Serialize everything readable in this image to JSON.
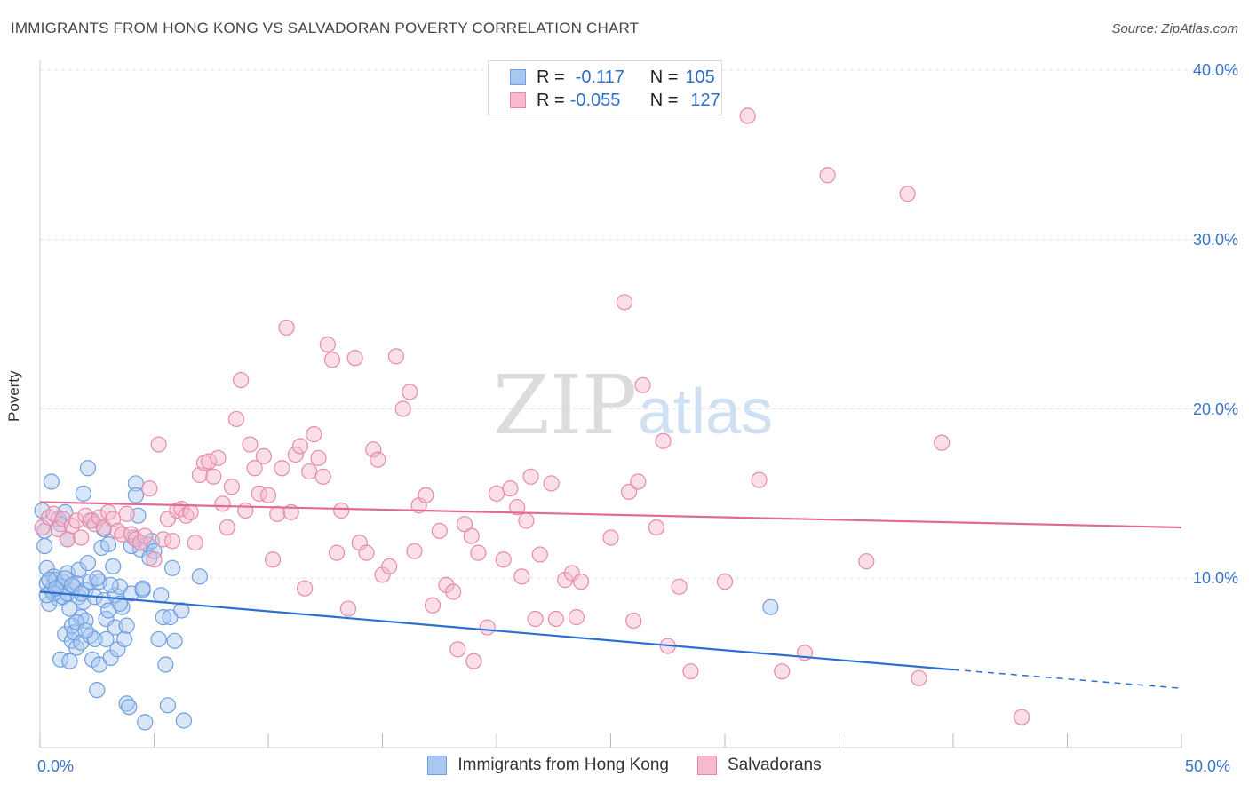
{
  "title": "IMMIGRANTS FROM HONG KONG VS SALVADORAN POVERTY CORRELATION CHART",
  "source": "Source: ZipAtlas.com",
  "watermark": {
    "zip": "ZIP",
    "atlas": "atlas"
  },
  "legend": {
    "rows": [
      {
        "r_label": "R =",
        "r_value": "-0.117",
        "n_label": "N =",
        "n_value": "105",
        "color": "#a9c7f0",
        "border": "#6f9fe0"
      },
      {
        "r_label": "R =",
        "r_value": "-0.055",
        "n_label": "N =",
        "n_value": "127",
        "color": "#f7b9cc",
        "border": "#e88aa8"
      }
    ]
  },
  "bottom_legend": [
    {
      "label": "Immigrants from Hong Kong",
      "color": "#a9c7f0",
      "border": "#6f9fe0"
    },
    {
      "label": "Salvadorans",
      "color": "#f7b9cc",
      "border": "#e88aa8"
    }
  ],
  "chart_data": {
    "type": "scatter",
    "title": "IMMIGRANTS FROM HONG KONG VS SALVADORAN POVERTY CORRELATION CHART",
    "xlabel": "",
    "ylabel": "Poverty",
    "xlim": [
      0,
      50
    ],
    "ylim": [
      0,
      40
    ],
    "x_tick_labels": [
      "0.0%",
      "50.0%"
    ],
    "y_ticks": [
      10,
      20,
      30,
      40
    ],
    "y_tick_labels": [
      "10.0%",
      "20.0%",
      "30.0%",
      "40.0%"
    ],
    "grid": true,
    "legend_position": "top-center",
    "series": [
      {
        "name": "Immigrants from Hong Kong",
        "color": "#6f9fe0",
        "fill": "#a9c7f0",
        "line_color": "#2d6fd0",
        "trend": {
          "x0": 0,
          "y0": 9.2,
          "x1": 40,
          "y1": 4.6,
          "dash_to_x": 50,
          "dash_to_y": 3.5
        },
        "points": [
          [
            0.1,
            14.0
          ],
          [
            0.2,
            12.8
          ],
          [
            0.2,
            11.9
          ],
          [
            0.3,
            10.6
          ],
          [
            0.3,
            9.7
          ],
          [
            0.4,
            8.5
          ],
          [
            0.5,
            15.7
          ],
          [
            0.5,
            9.3
          ],
          [
            0.6,
            10.1
          ],
          [
            0.7,
            9.9
          ],
          [
            0.8,
            8.8
          ],
          [
            0.8,
            13.5
          ],
          [
            0.9,
            9.5
          ],
          [
            0.9,
            5.2
          ],
          [
            1.0,
            9.8
          ],
          [
            1.0,
            8.9
          ],
          [
            1.1,
            6.7
          ],
          [
            1.1,
            13.9
          ],
          [
            1.2,
            10.3
          ],
          [
            1.2,
            9.1
          ],
          [
            1.3,
            8.2
          ],
          [
            1.3,
            5.1
          ],
          [
            1.4,
            7.2
          ],
          [
            1.4,
            6.3
          ],
          [
            1.5,
            9.5
          ],
          [
            1.5,
            6.8
          ],
          [
            1.6,
            9.7
          ],
          [
            1.6,
            5.9
          ],
          [
            1.7,
            10.5
          ],
          [
            1.7,
            8.9
          ],
          [
            1.8,
            7.7
          ],
          [
            1.8,
            6.2
          ],
          [
            1.9,
            15.0
          ],
          [
            1.9,
            8.6
          ],
          [
            2.0,
            9.3
          ],
          [
            2.0,
            7.5
          ],
          [
            2.1,
            16.5
          ],
          [
            2.1,
            10.9
          ],
          [
            2.2,
            9.8
          ],
          [
            2.2,
            6.6
          ],
          [
            2.3,
            5.2
          ],
          [
            2.3,
            13.4
          ],
          [
            2.4,
            8.9
          ],
          [
            2.4,
            6.4
          ],
          [
            2.5,
            3.4
          ],
          [
            2.6,
            9.8
          ],
          [
            2.6,
            4.9
          ],
          [
            2.7,
            11.8
          ],
          [
            2.8,
            8.7
          ],
          [
            2.9,
            7.6
          ],
          [
            2.9,
            6.4
          ],
          [
            3.0,
            12.0
          ],
          [
            3.0,
            8.1
          ],
          [
            3.1,
            5.3
          ],
          [
            3.2,
            10.7
          ],
          [
            3.3,
            9.0
          ],
          [
            3.3,
            7.1
          ],
          [
            3.4,
            5.8
          ],
          [
            3.5,
            9.5
          ],
          [
            3.6,
            8.3
          ],
          [
            3.7,
            6.4
          ],
          [
            3.8,
            2.6
          ],
          [
            3.8,
            7.2
          ],
          [
            3.9,
            2.4
          ],
          [
            4.0,
            9.1
          ],
          [
            4.1,
            12.4
          ],
          [
            4.2,
            15.6
          ],
          [
            4.2,
            14.9
          ],
          [
            4.3,
            13.7
          ],
          [
            4.4,
            11.7
          ],
          [
            4.5,
            9.3
          ],
          [
            4.6,
            1.5
          ],
          [
            4.7,
            12.0
          ],
          [
            4.8,
            11.2
          ],
          [
            4.9,
            12.2
          ],
          [
            5.0,
            11.6
          ],
          [
            5.2,
            6.4
          ],
          [
            5.3,
            9.0
          ],
          [
            5.4,
            7.7
          ],
          [
            5.5,
            4.9
          ],
          [
            5.6,
            2.5
          ],
          [
            5.7,
            7.7
          ],
          [
            5.8,
            10.6
          ],
          [
            5.9,
            6.3
          ],
          [
            6.2,
            8.1
          ],
          [
            6.3,
            1.6
          ],
          [
            7.0,
            10.1
          ],
          [
            0.4,
            9.9
          ],
          [
            0.6,
            9.1
          ],
          [
            0.9,
            13.2
          ],
          [
            1.2,
            12.3
          ],
          [
            1.6,
            7.4
          ],
          [
            2.0,
            6.9
          ],
          [
            2.5,
            10.0
          ],
          [
            2.8,
            12.9
          ],
          [
            3.1,
            9.6
          ],
          [
            3.5,
            8.5
          ],
          [
            4.0,
            11.9
          ],
          [
            4.5,
            9.4
          ],
          [
            0.3,
            9.0
          ],
          [
            0.7,
            9.4
          ],
          [
            1.1,
            10.0
          ],
          [
            1.4,
            9.6
          ],
          [
            32.0,
            8.3
          ],
          [
            1.8,
            9.1
          ]
        ]
      },
      {
        "name": "Salvadorans",
        "color": "#e88aa8",
        "fill": "#f7b9cc",
        "line_color": "#e06b94",
        "trend": {
          "x0": 0,
          "y0": 14.5,
          "x1": 50,
          "y1": 13.0
        },
        "points": [
          [
            0.1,
            13.0
          ],
          [
            0.4,
            13.6
          ],
          [
            0.6,
            13.8
          ],
          [
            0.8,
            12.9
          ],
          [
            1.0,
            13.5
          ],
          [
            1.2,
            12.3
          ],
          [
            1.4,
            13.1
          ],
          [
            1.6,
            13.4
          ],
          [
            1.8,
            12.4
          ],
          [
            2.0,
            13.7
          ],
          [
            2.2,
            13.4
          ],
          [
            2.4,
            13.2
          ],
          [
            2.6,
            13.6
          ],
          [
            2.8,
            13.0
          ],
          [
            3.0,
            13.9
          ],
          [
            3.2,
            13.5
          ],
          [
            3.4,
            12.8
          ],
          [
            3.6,
            12.6
          ],
          [
            3.8,
            13.8
          ],
          [
            4.0,
            12.6
          ],
          [
            4.2,
            12.3
          ],
          [
            4.4,
            12.1
          ],
          [
            4.6,
            12.5
          ],
          [
            4.8,
            15.3
          ],
          [
            5.0,
            11.1
          ],
          [
            5.2,
            17.9
          ],
          [
            5.4,
            12.3
          ],
          [
            5.6,
            13.5
          ],
          [
            5.8,
            12.2
          ],
          [
            6.0,
            14.0
          ],
          [
            6.2,
            14.1
          ],
          [
            6.4,
            13.7
          ],
          [
            6.6,
            13.9
          ],
          [
            6.8,
            12.1
          ],
          [
            7.0,
            16.1
          ],
          [
            7.2,
            16.8
          ],
          [
            7.4,
            16.9
          ],
          [
            7.6,
            16.0
          ],
          [
            7.8,
            17.1
          ],
          [
            8.0,
            14.4
          ],
          [
            8.2,
            13.0
          ],
          [
            8.4,
            15.4
          ],
          [
            8.6,
            19.4
          ],
          [
            8.8,
            21.7
          ],
          [
            9.0,
            14.0
          ],
          [
            9.2,
            17.9
          ],
          [
            9.4,
            16.5
          ],
          [
            9.6,
            15.0
          ],
          [
            9.8,
            17.2
          ],
          [
            10.0,
            14.9
          ],
          [
            10.2,
            11.1
          ],
          [
            10.4,
            13.8
          ],
          [
            10.6,
            16.5
          ],
          [
            10.8,
            24.8
          ],
          [
            11.0,
            13.9
          ],
          [
            11.2,
            17.3
          ],
          [
            11.4,
            17.8
          ],
          [
            11.6,
            9.4
          ],
          [
            11.8,
            16.3
          ],
          [
            12.0,
            18.5
          ],
          [
            12.2,
            17.1
          ],
          [
            12.4,
            16.0
          ],
          [
            12.6,
            23.8
          ],
          [
            12.8,
            22.9
          ],
          [
            13.0,
            11.5
          ],
          [
            13.2,
            14.0
          ],
          [
            13.5,
            8.2
          ],
          [
            13.8,
            23.0
          ],
          [
            14.0,
            12.1
          ],
          [
            14.3,
            11.5
          ],
          [
            14.6,
            17.6
          ],
          [
            14.8,
            17.0
          ],
          [
            15.0,
            10.2
          ],
          [
            15.3,
            10.7
          ],
          [
            15.6,
            23.1
          ],
          [
            15.9,
            20.0
          ],
          [
            16.2,
            21.0
          ],
          [
            16.4,
            11.6
          ],
          [
            16.6,
            14.3
          ],
          [
            16.9,
            14.9
          ],
          [
            17.2,
            8.4
          ],
          [
            17.5,
            12.8
          ],
          [
            17.8,
            9.6
          ],
          [
            18.1,
            9.2
          ],
          [
            18.6,
            13.2
          ],
          [
            18.9,
            12.5
          ],
          [
            19.2,
            11.5
          ],
          [
            19.6,
            7.1
          ],
          [
            20.0,
            15.0
          ],
          [
            20.3,
            11.1
          ],
          [
            20.6,
            15.3
          ],
          [
            20.9,
            14.2
          ],
          [
            21.1,
            10.1
          ],
          [
            21.5,
            16.0
          ],
          [
            21.7,
            7.6
          ],
          [
            21.9,
            11.4
          ],
          [
            22.4,
            15.6
          ],
          [
            22.6,
            7.6
          ],
          [
            23.0,
            9.9
          ],
          [
            23.3,
            10.3
          ],
          [
            23.5,
            7.7
          ],
          [
            23.7,
            9.8
          ],
          [
            25.0,
            12.4
          ],
          [
            25.6,
            26.3
          ],
          [
            25.8,
            15.1
          ],
          [
            26.0,
            7.5
          ],
          [
            26.2,
            15.7
          ],
          [
            26.4,
            21.4
          ],
          [
            27.0,
            13.0
          ],
          [
            27.3,
            18.1
          ],
          [
            27.5,
            6.0
          ],
          [
            28.0,
            9.5
          ],
          [
            28.5,
            4.5
          ],
          [
            30.0,
            9.8
          ],
          [
            31.0,
            37.3
          ],
          [
            31.5,
            15.8
          ],
          [
            32.5,
            4.5
          ],
          [
            33.5,
            5.6
          ],
          [
            34.5,
            33.8
          ],
          [
            36.2,
            11.0
          ],
          [
            38.0,
            32.7
          ],
          [
            38.5,
            4.1
          ],
          [
            39.5,
            18.0
          ],
          [
            43.0,
            1.8
          ],
          [
            19.0,
            5.1
          ],
          [
            18.3,
            5.8
          ],
          [
            21.3,
            13.4
          ]
        ]
      }
    ]
  }
}
